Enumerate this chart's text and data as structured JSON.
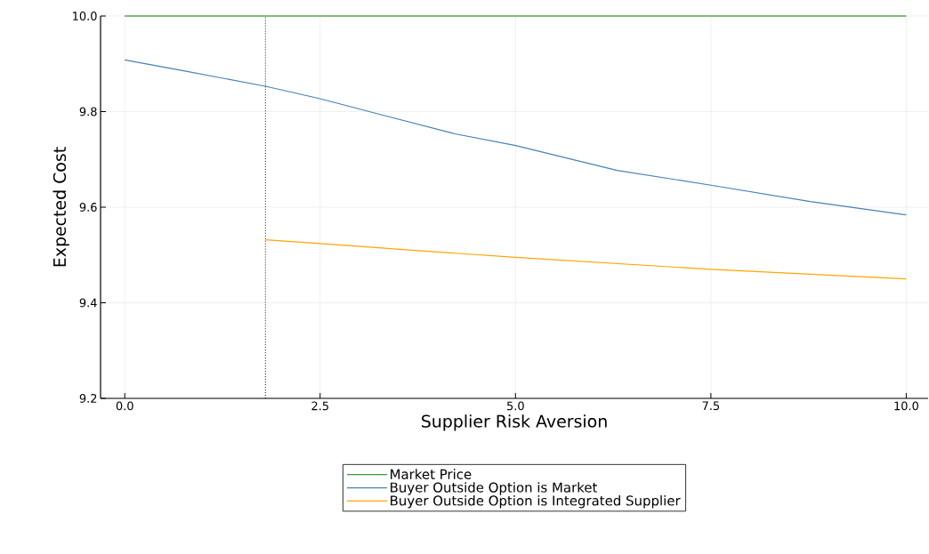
{
  "chart_data": {
    "type": "line",
    "xlabel": "Supplier Risk Aversion",
    "ylabel": "Expected Cost",
    "xlim": [
      -0.31,
      10.28
    ],
    "ylim": [
      9.2,
      10.0
    ],
    "xticks": [
      {
        "value": 0,
        "label": "0.0"
      },
      2.5,
      {
        "value": 5,
        "label": "5.0"
      },
      7.5,
      {
        "value": 10,
        "label": "10.0"
      }
    ],
    "yticks": [
      9.2,
      9.4,
      9.6,
      9.8,
      {
        "value": 10,
        "label": "10.0"
      }
    ],
    "grid": true,
    "legend": "bottom",
    "marker": "none",
    "line_style": "solid",
    "ref_lines": [
      {
        "axis": "x",
        "value": 1.8,
        "color": "#000000",
        "line_style": "dotted"
      }
    ],
    "series": [
      {
        "name": "Market Price",
        "color": "#008000",
        "x": [
          0,
          10
        ],
        "values": [
          10.0,
          10.0
        ]
      },
      {
        "name": "Buyer Outside Option is Market",
        "color": "#4682b4",
        "x": [
          0,
          0.8,
          1.8,
          2.5,
          3.27,
          4.21,
          5,
          6.3,
          7.5,
          8.77,
          10
        ],
        "values": [
          9.908,
          9.884,
          9.853,
          9.827,
          9.794,
          9.754,
          9.729,
          9.677,
          9.646,
          9.612,
          9.584
        ]
      },
      {
        "name": "Buyer Outside Option is Integrated Supplier",
        "color": "#ffa500",
        "x": [
          1.8,
          2.5,
          3.76,
          5,
          7.5,
          10
        ],
        "values": [
          9.532,
          9.524,
          9.509,
          9.495,
          9.47,
          9.45
        ]
      }
    ]
  }
}
